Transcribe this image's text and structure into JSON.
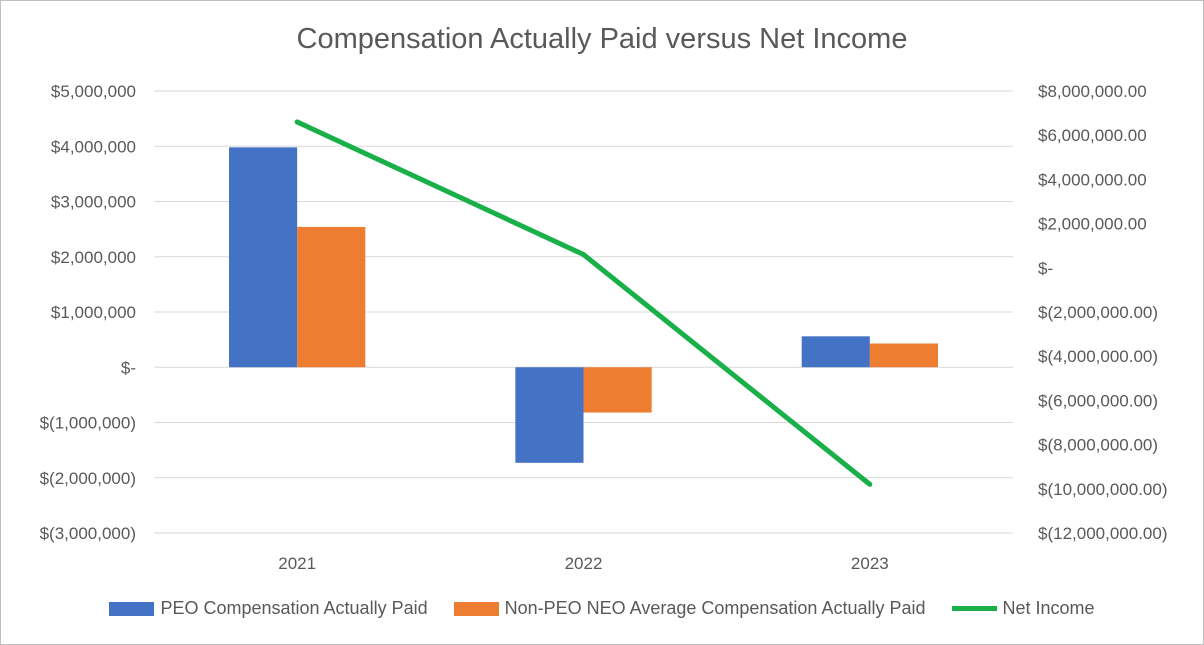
{
  "chart_data": {
    "type": "bar",
    "title": "Compensation Actually Paid versus Net Income",
    "categories": [
      "2021",
      "2022",
      "2023"
    ],
    "series": [
      {
        "name": "PEO Compensation Actually Paid",
        "type": "bar",
        "axis": "left",
        "color": "#4472C4",
        "values": [
          3980000,
          -1730000,
          560000
        ]
      },
      {
        "name": "Non-PEO NEO Average Compensation Actually Paid",
        "type": "bar",
        "axis": "left",
        "color": "#ED7D31",
        "values": [
          2540000,
          -820000,
          430000
        ]
      },
      {
        "name": "Net Income",
        "type": "line",
        "axis": "right",
        "color": "#19B04A",
        "values": [
          6600000,
          600000,
          -9800000
        ]
      }
    ],
    "y_left": {
      "min": -3000000,
      "max": 5000000,
      "step": 1000000,
      "tick_labels": [
        "$(3,000,000)",
        "$(2,000,000)",
        "$(1,000,000)",
        "$-",
        "$1,000,000",
        "$2,000,000",
        "$3,000,000",
        "$4,000,000",
        "$5,000,000"
      ]
    },
    "y_right": {
      "min": -12000000,
      "max": 8000000,
      "step": 2000000,
      "tick_labels": [
        "$(12,000,000.00)",
        "$(10,000,000.00)",
        "$(8,000,000.00)",
        "$(6,000,000.00)",
        "$(4,000,000.00)",
        "$(2,000,000.00)",
        "$-",
        "$2,000,000.00",
        "$4,000,000.00",
        "$6,000,000.00",
        "$8,000,000.00"
      ]
    },
    "gridlines": true,
    "legend_position": "bottom"
  }
}
